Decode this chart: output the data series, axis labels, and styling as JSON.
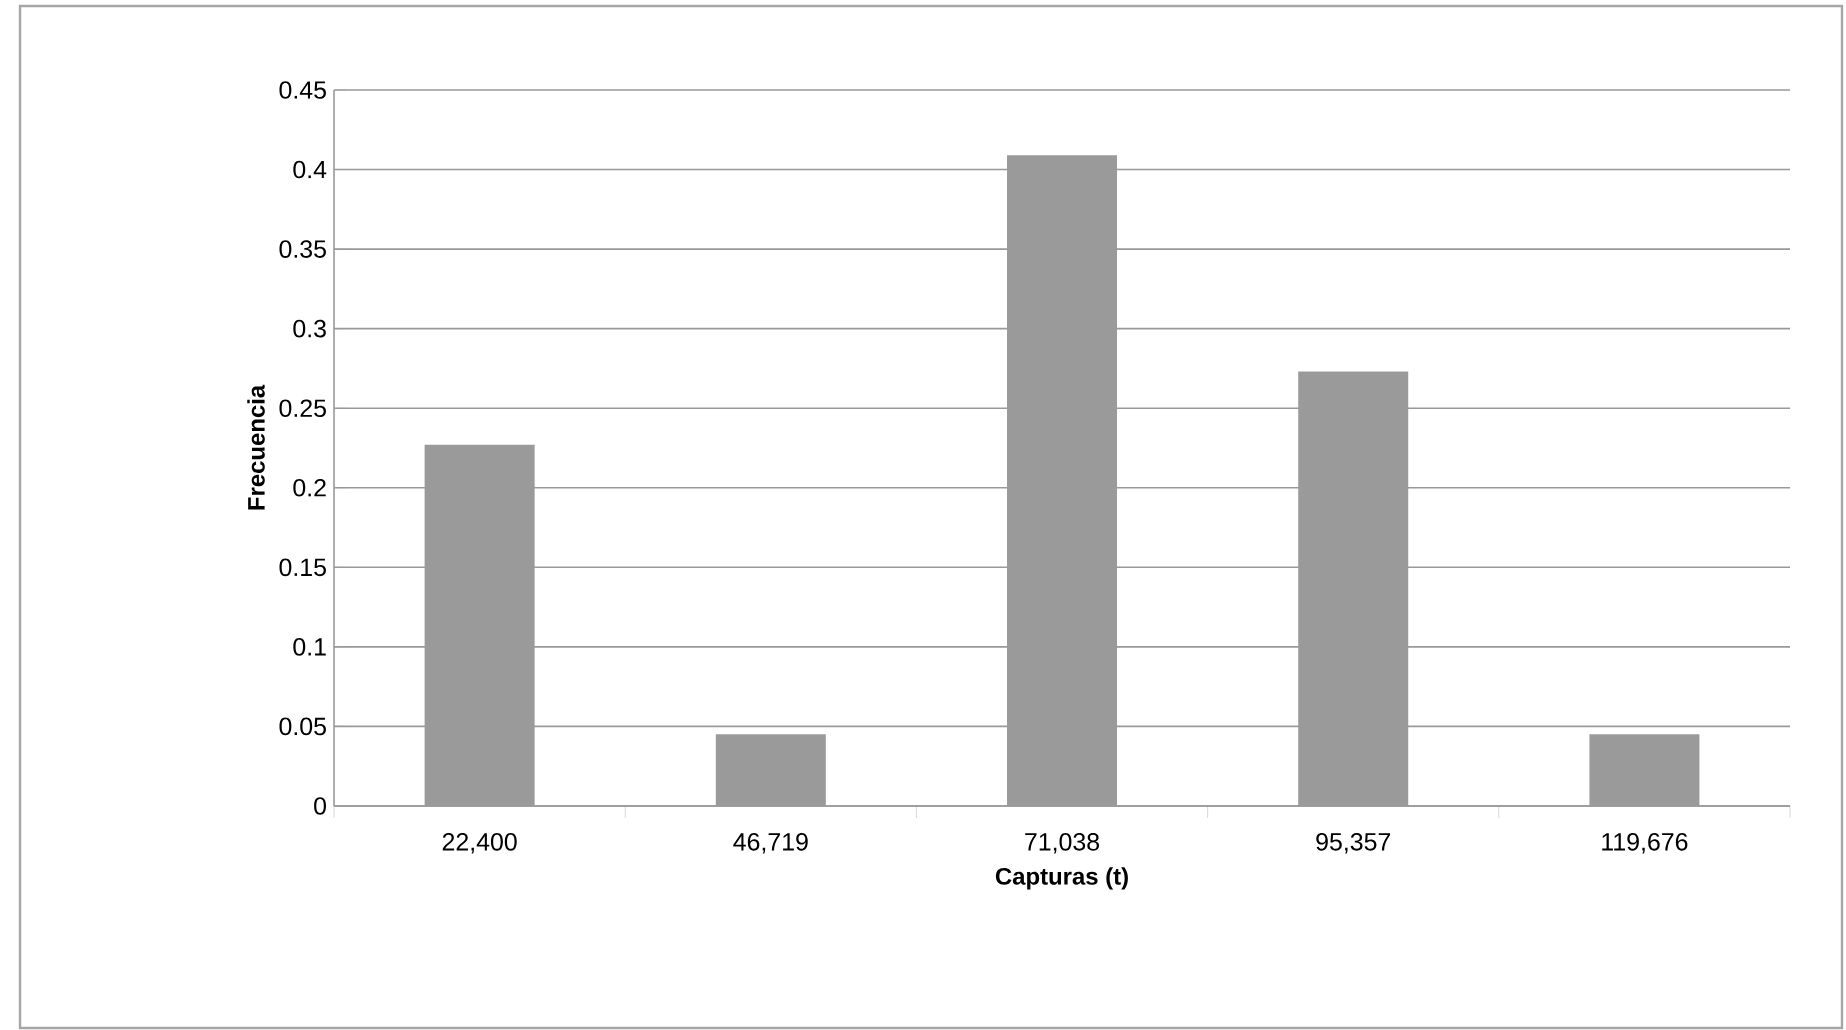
{
  "chart_data": {
    "type": "bar",
    "xlabel": "Capturas (t)",
    "ylabel": "Frecuencia",
    "categories": [
      "22,400",
      "46,719",
      "71,038",
      "95,357",
      "119,676"
    ],
    "values": [
      0.227,
      0.045,
      0.409,
      0.273,
      0.045
    ],
    "color": "#9a9a9a",
    "ylim": [
      0,
      0.45
    ],
    "yticks": [
      {
        "value": 0,
        "label": "0"
      },
      {
        "value": 0.05,
        "label": "0.05"
      },
      {
        "value": 0.1,
        "label": "0.1"
      },
      {
        "value": 0.15,
        "label": "0.15"
      },
      {
        "value": 0.2,
        "label": "0.2"
      },
      {
        "value": 0.25,
        "label": "0.25"
      },
      {
        "value": 0.3,
        "label": "0.3"
      },
      {
        "value": 0.35,
        "label": "0.35"
      },
      {
        "value": 0.4,
        "label": "0.4"
      },
      {
        "value": 0.45,
        "label": "0.45"
      }
    ],
    "grid": "y"
  }
}
